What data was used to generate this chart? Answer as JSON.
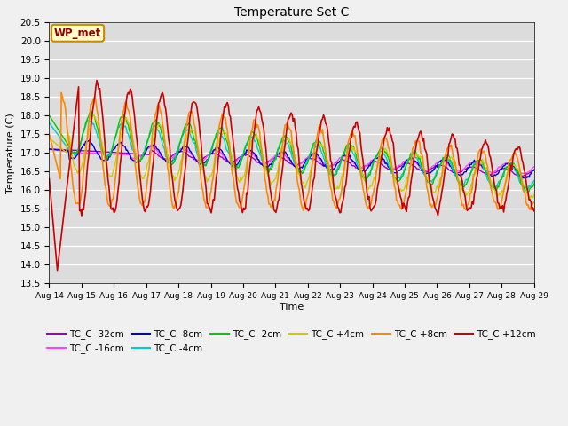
{
  "title": "Temperature Set C",
  "xlabel": "Time",
  "ylabel": "Temperature (C)",
  "ylim": [
    13.5,
    20.5
  ],
  "fig_bg": "#f0f0f0",
  "plot_bg": "#dcdcdc",
  "annotation_text": "WP_met",
  "annotation_bg": "#ffffcc",
  "annotation_border": "#cc8800",
  "series": [
    {
      "label": "TC_C -32cm",
      "color": "#9900cc",
      "lw": 1.0
    },
    {
      "label": "TC_C -16cm",
      "color": "#ff44ff",
      "lw": 1.0
    },
    {
      "label": "TC_C -8cm",
      "color": "#0000cc",
      "lw": 1.0
    },
    {
      "label": "TC_C -4cm",
      "color": "#00cccc",
      "lw": 1.0
    },
    {
      "label": "TC_C -2cm",
      "color": "#00cc00",
      "lw": 1.0
    },
    {
      "label": "TC_C +4cm",
      "color": "#cccc00",
      "lw": 1.0
    },
    {
      "label": "TC_C +8cm",
      "color": "#ff8800",
      "lw": 1.2
    },
    {
      "label": "TC_C +12cm",
      "color": "#cc0000",
      "lw": 1.2
    }
  ],
  "xtick_labels": [
    "Aug 14",
    "Aug 15",
    "Aug 16",
    "Aug 17",
    "Aug 18",
    "Aug 19",
    "Aug 20",
    "Aug 21",
    "Aug 22",
    "Aug 23",
    "Aug 24",
    "Aug 25",
    "Aug 26",
    "Aug 27",
    "Aug 28",
    "Aug 29"
  ],
  "n_points": 480
}
